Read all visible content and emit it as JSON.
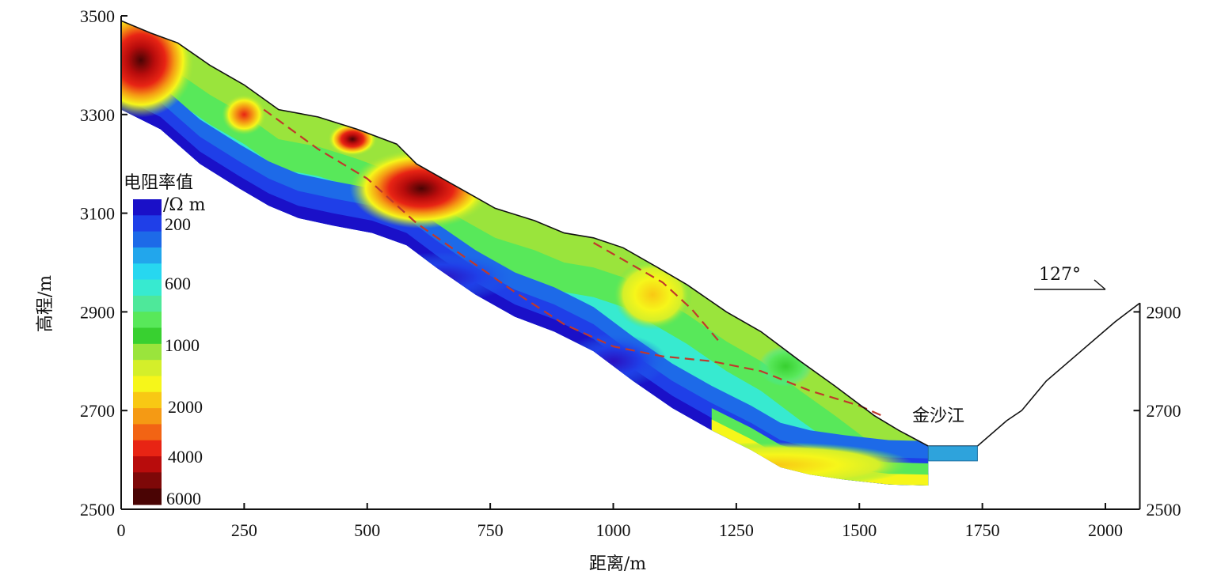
{
  "chart_data": {
    "type": "heatmap",
    "title": "",
    "xlabel": "距离/m",
    "ylabel": "高程/m",
    "xlim": [
      0,
      2070
    ],
    "ylim": [
      2500,
      3500
    ],
    "x_ticks": [
      0,
      250,
      500,
      750,
      1000,
      1250,
      1500,
      1750,
      2000
    ],
    "y_ticks": [
      2500,
      2700,
      2900,
      3100,
      3300,
      3500
    ],
    "right_y_ticks": [
      2500,
      2700,
      2900
    ],
    "colorbar": {
      "title": "电阻率值",
      "unit": "/Ω m",
      "tick_labels": [
        "200",
        "600",
        "1000",
        "2000",
        "4000",
        "6000"
      ],
      "colors": [
        "#1a10c8",
        "#1f3fe8",
        "#1d6ae8",
        "#22a6ec",
        "#27d7f0",
        "#37ead0",
        "#4ee89a",
        "#58e85a",
        "#38d030",
        "#9ae43c",
        "#d4ef2a",
        "#f6f61a",
        "#f8c814",
        "#f59a14",
        "#f26414",
        "#e82414",
        "#b80c0c",
        "#7e0808",
        "#4a0404"
      ]
    },
    "annotations": {
      "river": "金沙江",
      "bearing": "127°"
    },
    "surface_profile": [
      {
        "x": 0,
        "y": 3490
      },
      {
        "x": 60,
        "y": 3465
      },
      {
        "x": 115,
        "y": 3445
      },
      {
        "x": 180,
        "y": 3400
      },
      {
        "x": 250,
        "y": 3360
      },
      {
        "x": 320,
        "y": 3310
      },
      {
        "x": 400,
        "y": 3295
      },
      {
        "x": 480,
        "y": 3270
      },
      {
        "x": 560,
        "y": 3240
      },
      {
        "x": 600,
        "y": 3200
      },
      {
        "x": 680,
        "y": 3155
      },
      {
        "x": 760,
        "y": 3110
      },
      {
        "x": 840,
        "y": 3085
      },
      {
        "x": 900,
        "y": 3060
      },
      {
        "x": 960,
        "y": 3050
      },
      {
        "x": 1020,
        "y": 3030
      },
      {
        "x": 1090,
        "y": 2990
      },
      {
        "x": 1150,
        "y": 2955
      },
      {
        "x": 1230,
        "y": 2900
      },
      {
        "x": 1300,
        "y": 2860
      },
      {
        "x": 1380,
        "y": 2800
      },
      {
        "x": 1450,
        "y": 2750
      },
      {
        "x": 1530,
        "y": 2690
      },
      {
        "x": 1580,
        "y": 2660
      },
      {
        "x": 1640,
        "y": 2628
      },
      {
        "x": 1740,
        "y": 2628
      },
      {
        "x": 1800,
        "y": 2680
      },
      {
        "x": 1830,
        "y": 2700
      },
      {
        "x": 1880,
        "y": 2760
      },
      {
        "x": 1950,
        "y": 2820
      },
      {
        "x": 2020,
        "y": 2880
      },
      {
        "x": 2070,
        "y": 2918
      }
    ],
    "model_bottom": [
      {
        "x": 0,
        "y": 3310
      },
      {
        "x": 80,
        "y": 3270
      },
      {
        "x": 160,
        "y": 3200
      },
      {
        "x": 240,
        "y": 3150
      },
      {
        "x": 300,
        "y": 3115
      },
      {
        "x": 360,
        "y": 3090
      },
      {
        "x": 430,
        "y": 3075
      },
      {
        "x": 510,
        "y": 3060
      },
      {
        "x": 580,
        "y": 3035
      },
      {
        "x": 640,
        "y": 2990
      },
      {
        "x": 720,
        "y": 2935
      },
      {
        "x": 800,
        "y": 2890
      },
      {
        "x": 880,
        "y": 2860
      },
      {
        "x": 960,
        "y": 2820
      },
      {
        "x": 1040,
        "y": 2760
      },
      {
        "x": 1120,
        "y": 2705
      },
      {
        "x": 1200,
        "y": 2660
      },
      {
        "x": 1280,
        "y": 2620
      },
      {
        "x": 1340,
        "y": 2585
      },
      {
        "x": 1400,
        "y": 2570
      },
      {
        "x": 1470,
        "y": 2560
      },
      {
        "x": 1560,
        "y": 2550
      },
      {
        "x": 1640,
        "y": 2548
      }
    ],
    "slip_surface": [
      {
        "x": 290,
        "y": 3310
      },
      {
        "x": 400,
        "y": 3230
      },
      {
        "x": 500,
        "y": 3170
      },
      {
        "x": 600,
        "y": 3080
      },
      {
        "x": 700,
        "y": 3010
      },
      {
        "x": 800,
        "y": 2940
      },
      {
        "x": 900,
        "y": 2875
      },
      {
        "x": 1000,
        "y": 2830
      },
      {
        "x": 1100,
        "y": 2810
      },
      {
        "x": 1200,
        "y": 2800
      },
      {
        "x": 1300,
        "y": 2780
      },
      {
        "x": 1400,
        "y": 2740
      },
      {
        "x": 1500,
        "y": 2710
      },
      {
        "x": 1545,
        "y": 2690
      }
    ],
    "slip_surface_upper": [
      {
        "x": 960,
        "y": 3040
      },
      {
        "x": 1030,
        "y": 3000
      },
      {
        "x": 1100,
        "y": 2960
      },
      {
        "x": 1160,
        "y": 2905
      },
      {
        "x": 1215,
        "y": 2840
      }
    ],
    "anomalies": [
      {
        "x": 40,
        "y": 3410,
        "rx": 110,
        "ry": 100,
        "value": 6000
      },
      {
        "x": 250,
        "y": 3300,
        "rx": 45,
        "ry": 25,
        "value": 2500
      },
      {
        "x": 470,
        "y": 3250,
        "rx": 50,
        "ry": 18,
        "value": 4000
      },
      {
        "x": 610,
        "y": 3150,
        "rx": 145,
        "ry": 65,
        "value": 6000
      },
      {
        "x": 1080,
        "y": 2935,
        "rx": 80,
        "ry": 55,
        "value": 1700
      },
      {
        "x": 1350,
        "y": 2790,
        "rx": 55,
        "ry": 25,
        "value": 900
      },
      {
        "x": 1330,
        "y": 2590,
        "rx": 280,
        "ry": 30,
        "value": 1500
      },
      {
        "x": 650,
        "y": 2970,
        "rx": 150,
        "ry": 35,
        "value": 150
      },
      {
        "x": 1000,
        "y": 2800,
        "rx": 110,
        "ry": 40,
        "value": 180
      }
    ],
    "water_level": 2628,
    "water_bottom": 2598,
    "water_x": [
      1640,
      1740
    ]
  }
}
